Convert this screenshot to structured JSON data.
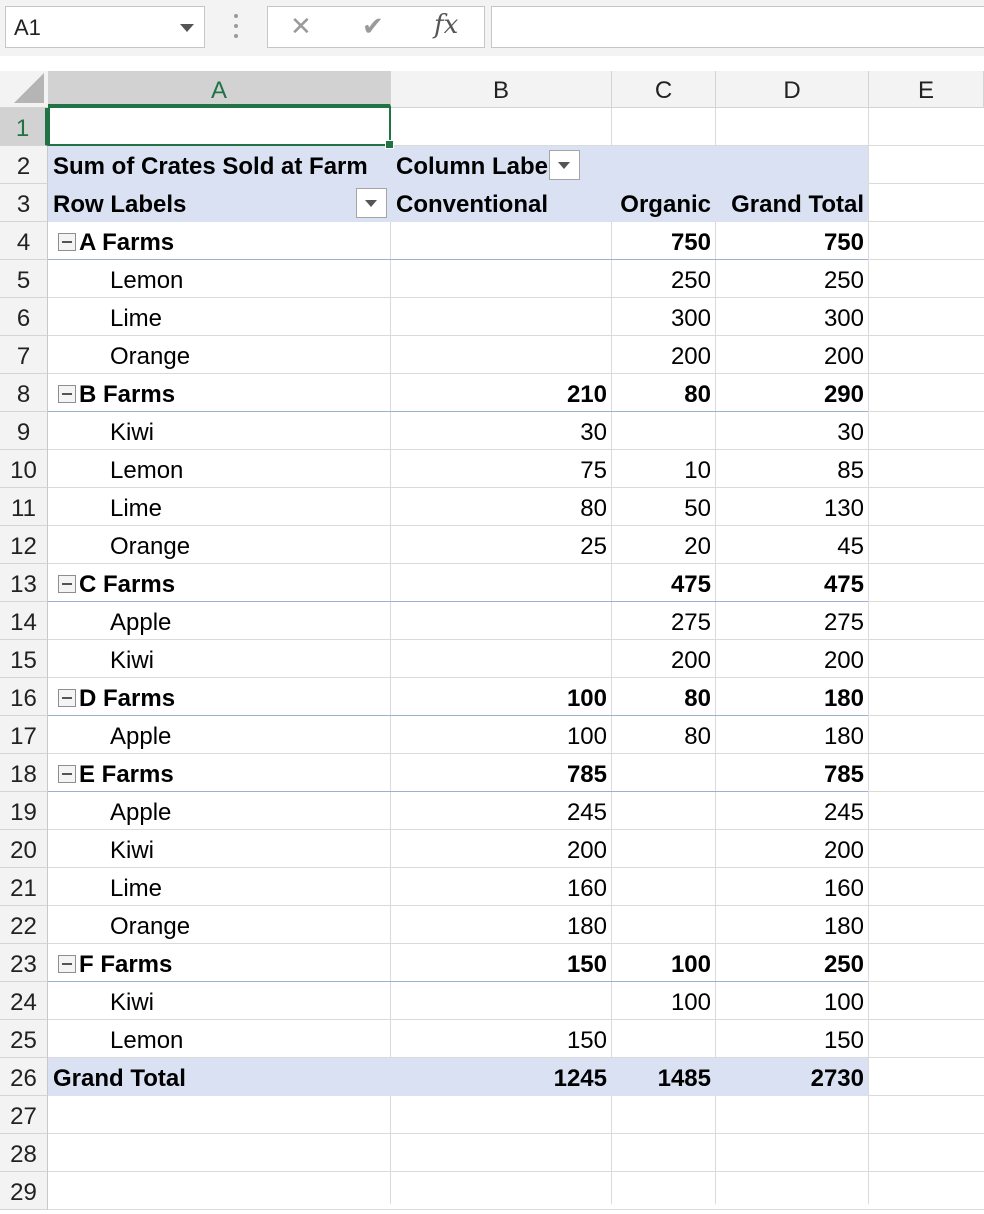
{
  "formula_bar": {
    "name_box": "A1",
    "fx_label": "fx",
    "formula": ""
  },
  "columns": [
    "A",
    "B",
    "C",
    "D",
    "E"
  ],
  "row_numbers": [
    "1",
    "2",
    "3",
    "4",
    "5",
    "6",
    "7",
    "8",
    "9",
    "10",
    "11",
    "12",
    "13",
    "14",
    "15",
    "16",
    "17",
    "18",
    "19",
    "20",
    "21",
    "22",
    "23",
    "24",
    "25",
    "26",
    "27",
    "28",
    "29"
  ],
  "pivot": {
    "value_field": "Sum of Crates Sold at Farm",
    "column_labels": "Column Labels",
    "row_labels": "Row Labels",
    "headers": [
      "Conventional",
      "Organic",
      "Grand Total"
    ],
    "rows": [
      {
        "label": "A Farms",
        "level": 0,
        "conventional": "",
        "organic": "750",
        "total": "750"
      },
      {
        "label": "Lemon",
        "level": 1,
        "conventional": "",
        "organic": "250",
        "total": "250"
      },
      {
        "label": "Lime",
        "level": 1,
        "conventional": "",
        "organic": "300",
        "total": "300"
      },
      {
        "label": "Orange",
        "level": 1,
        "conventional": "",
        "organic": "200",
        "total": "200"
      },
      {
        "label": "B Farms",
        "level": 0,
        "conventional": "210",
        "organic": "80",
        "total": "290"
      },
      {
        "label": "Kiwi",
        "level": 1,
        "conventional": "30",
        "organic": "",
        "total": "30"
      },
      {
        "label": "Lemon",
        "level": 1,
        "conventional": "75",
        "organic": "10",
        "total": "85"
      },
      {
        "label": "Lime",
        "level": 1,
        "conventional": "80",
        "organic": "50",
        "total": "130"
      },
      {
        "label": "Orange",
        "level": 1,
        "conventional": "25",
        "organic": "20",
        "total": "45"
      },
      {
        "label": "C Farms",
        "level": 0,
        "conventional": "",
        "organic": "475",
        "total": "475"
      },
      {
        "label": "Apple",
        "level": 1,
        "conventional": "",
        "organic": "275",
        "total": "275"
      },
      {
        "label": "Kiwi",
        "level": 1,
        "conventional": "",
        "organic": "200",
        "total": "200"
      },
      {
        "label": "D Farms",
        "level": 0,
        "conventional": "100",
        "organic": "80",
        "total": "180"
      },
      {
        "label": "Apple",
        "level": 1,
        "conventional": "100",
        "organic": "80",
        "total": "180"
      },
      {
        "label": "E Farms",
        "level": 0,
        "conventional": "785",
        "organic": "",
        "total": "785"
      },
      {
        "label": "Apple",
        "level": 1,
        "conventional": "245",
        "organic": "",
        "total": "245"
      },
      {
        "label": "Kiwi",
        "level": 1,
        "conventional": "200",
        "organic": "",
        "total": "200"
      },
      {
        "label": "Lime",
        "level": 1,
        "conventional": "160",
        "organic": "",
        "total": "160"
      },
      {
        "label": "Orange",
        "level": 1,
        "conventional": "180",
        "organic": "",
        "total": "180"
      },
      {
        "label": "F Farms",
        "level": 0,
        "conventional": "150",
        "organic": "100",
        "total": "250"
      },
      {
        "label": "Kiwi",
        "level": 1,
        "conventional": "",
        "organic": "100",
        "total": "100"
      },
      {
        "label": "Lemon",
        "level": 1,
        "conventional": "150",
        "organic": "",
        "total": "150"
      }
    ],
    "grand_total": {
      "label": "Grand Total",
      "conventional": "1245",
      "organic": "1485",
      "total": "2730"
    }
  },
  "colors": {
    "accent": "#217346",
    "pivot_band": "#d9e1f2",
    "farm_line": "#9bb0d5"
  }
}
